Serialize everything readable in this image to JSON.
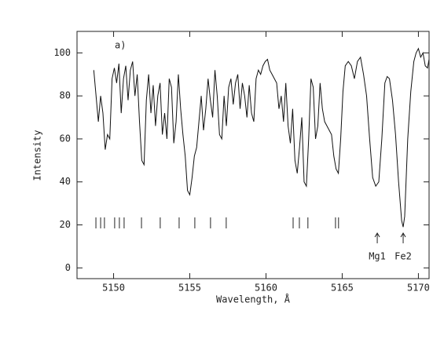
{
  "chart_data": {
    "type": "line",
    "panel_label": "a)",
    "xlabel": "Wavelength, Å",
    "ylabel": "Intensity",
    "xlim": [
      5147.6,
      5170.7
    ],
    "ylim": [
      -5,
      110
    ],
    "xticks": [
      5150,
      5155,
      5160,
      5165,
      5170
    ],
    "yticks": [
      0,
      20,
      40,
      60,
      80,
      100
    ],
    "color": "#111111",
    "x": [
      5148.7,
      5148.85,
      5149.0,
      5149.15,
      5149.3,
      5149.45,
      5149.6,
      5149.75,
      5149.9,
      5150.05,
      5150.2,
      5150.35,
      5150.5,
      5150.65,
      5150.8,
      5150.95,
      5151.1,
      5151.25,
      5151.4,
      5151.55,
      5151.7,
      5151.85,
      5152.0,
      5152.15,
      5152.3,
      5152.45,
      5152.6,
      5152.75,
      5152.9,
      5153.05,
      5153.2,
      5153.35,
      5153.5,
      5153.65,
      5153.8,
      5153.95,
      5154.1,
      5154.25,
      5154.4,
      5154.55,
      5154.7,
      5154.85,
      5155.0,
      5155.15,
      5155.3,
      5155.45,
      5155.6,
      5155.75,
      5155.9,
      5156.05,
      5156.2,
      5156.35,
      5156.5,
      5156.65,
      5156.8,
      5156.95,
      5157.1,
      5157.25,
      5157.4,
      5157.55,
      5157.7,
      5157.85,
      5158.0,
      5158.15,
      5158.3,
      5158.45,
      5158.6,
      5158.75,
      5158.9,
      5159.05,
      5159.2,
      5159.35,
      5159.5,
      5159.65,
      5159.8,
      5159.95,
      5160.1,
      5160.25,
      5160.4,
      5160.55,
      5160.7,
      5160.85,
      5161.0,
      5161.15,
      5161.3,
      5161.45,
      5161.6,
      5161.75,
      5161.9,
      5162.05,
      5162.2,
      5162.35,
      5162.5,
      5162.65,
      5162.8,
      5162.95,
      5163.1,
      5163.25,
      5163.4,
      5163.55,
      5163.7,
      5163.85,
      5164.0,
      5164.15,
      5164.3,
      5164.45,
      5164.6,
      5164.75,
      5164.9,
      5165.05,
      5165.2,
      5165.4,
      5165.6,
      5165.8,
      5166.0,
      5166.2,
      5166.4,
      5166.6,
      5166.8,
      5167.0,
      5167.2,
      5167.4,
      5167.6,
      5167.8,
      5167.95,
      5168.1,
      5168.3,
      5168.5,
      5168.7,
      5168.9,
      5169.0,
      5169.1,
      5169.3,
      5169.5,
      5169.7,
      5169.85,
      5170.0,
      5170.15,
      5170.3,
      5170.45,
      5170.6,
      5170.7
    ],
    "values": [
      92,
      80,
      68,
      80,
      72,
      55,
      62,
      60,
      88,
      93,
      86,
      95,
      72,
      88,
      94,
      78,
      92,
      96,
      80,
      90,
      68,
      50,
      48,
      78,
      90,
      72,
      85,
      66,
      80,
      86,
      62,
      72,
      60,
      88,
      84,
      58,
      68,
      90,
      74,
      62,
      52,
      36,
      34,
      42,
      52,
      56,
      68,
      80,
      64,
      74,
      88,
      78,
      70,
      92,
      80,
      62,
      60,
      80,
      66,
      84,
      88,
      76,
      86,
      90,
      74,
      86,
      80,
      70,
      85,
      72,
      68,
      88,
      92,
      90,
      94,
      96,
      97,
      92,
      90,
      88,
      86,
      74,
      80,
      68,
      86,
      66,
      58,
      74,
      50,
      44,
      56,
      70,
      40,
      38,
      60,
      88,
      84,
      60,
      66,
      86,
      74,
      68,
      66,
      64,
      62,
      52,
      46,
      44,
      60,
      82,
      94,
      96,
      94,
      88,
      96,
      98,
      90,
      80,
      60,
      42,
      38,
      40,
      60,
      86,
      89,
      88,
      78,
      62,
      40,
      22,
      19,
      24,
      60,
      82,
      96,
      100,
      102,
      98,
      100,
      94,
      93,
      97
    ],
    "line_markers": [
      5148.84,
      5149.15,
      5149.4,
      5150.07,
      5150.38,
      5150.69,
      5151.83,
      5153.06,
      5154.3,
      5155.33,
      5156.36,
      5157.39,
      5161.78,
      5162.19,
      5162.75,
      5164.56,
      5164.76
    ],
    "annotations": [
      {
        "text": "Mg1",
        "x": 5167.3
      },
      {
        "text": "Fe2",
        "x": 5169.0
      }
    ]
  }
}
